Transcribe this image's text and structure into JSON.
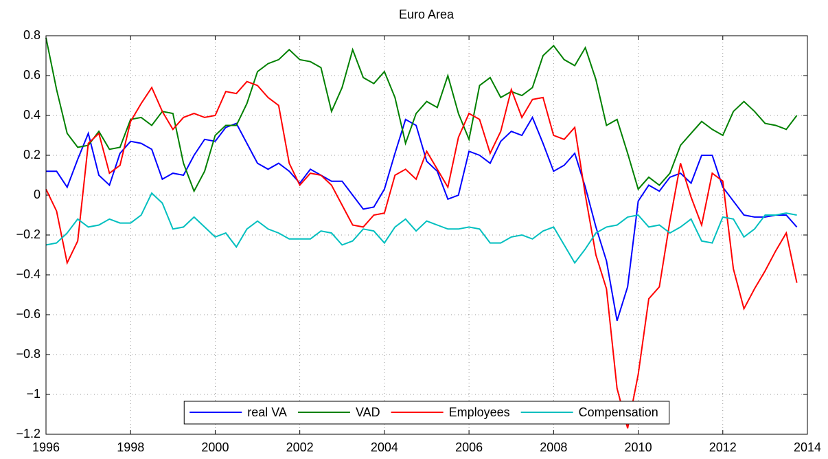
{
  "chart_data": {
    "type": "line",
    "title": "Euro Area",
    "x": [
      1996,
      1996.25,
      1996.5,
      1996.75,
      1997,
      1997.25,
      1997.5,
      1997.75,
      1998,
      1998.25,
      1998.5,
      1998.75,
      1999,
      1999.25,
      1999.5,
      1999.75,
      2000,
      2000.25,
      2000.5,
      2000.75,
      2001,
      2001.25,
      2001.5,
      2001.75,
      2002,
      2002.25,
      2002.5,
      2002.75,
      2003,
      2003.25,
      2003.5,
      2003.75,
      2004,
      2004.25,
      2004.5,
      2004.75,
      2005,
      2005.25,
      2005.5,
      2005.75,
      2006,
      2006.25,
      2006.5,
      2006.75,
      2007,
      2007.25,
      2007.5,
      2007.75,
      2008,
      2008.25,
      2008.5,
      2008.75,
      2009,
      2009.25,
      2009.5,
      2009.75,
      2010,
      2010.25,
      2010.5,
      2010.75,
      2011,
      2011.25,
      2011.5,
      2011.75,
      2012,
      2012.25,
      2012.5,
      2012.75,
      2013,
      2013.25,
      2013.5,
      2013.75
    ],
    "series": [
      {
        "name": "real VA",
        "color": "#0000ff",
        "values": [
          0.12,
          0.12,
          0.04,
          0.18,
          0.31,
          0.1,
          0.05,
          0.21,
          0.27,
          0.26,
          0.23,
          0.08,
          0.11,
          0.1,
          0.2,
          0.28,
          0.27,
          0.34,
          0.36,
          0.26,
          0.16,
          0.13,
          0.16,
          0.12,
          0.06,
          0.13,
          0.1,
          0.07,
          0.07,
          0.0,
          -0.07,
          -0.06,
          0.03,
          0.21,
          0.38,
          0.35,
          0.17,
          0.12,
          -0.02,
          0.0,
          0.22,
          0.2,
          0.16,
          0.27,
          0.32,
          0.3,
          0.39,
          0.26,
          0.12,
          0.15,
          0.21,
          0.04,
          -0.16,
          -0.33,
          -0.63,
          -0.46,
          -0.03,
          0.05,
          0.02,
          0.09,
          0.11,
          0.06,
          0.2,
          0.2,
          0.04,
          -0.03,
          -0.1,
          -0.11,
          -0.11,
          -0.1,
          -0.1,
          -0.16
        ]
      },
      {
        "name": "VAD",
        "color": "#008000",
        "values": [
          0.79,
          0.53,
          0.31,
          0.24,
          0.25,
          0.32,
          0.23,
          0.24,
          0.38,
          0.39,
          0.35,
          0.42,
          0.41,
          0.16,
          0.02,
          0.12,
          0.3,
          0.35,
          0.35,
          0.46,
          0.62,
          0.66,
          0.68,
          0.73,
          0.68,
          0.67,
          0.64,
          0.42,
          0.54,
          0.73,
          0.59,
          0.56,
          0.62,
          0.49,
          0.26,
          0.41,
          0.47,
          0.44,
          0.6,
          0.41,
          0.28,
          0.55,
          0.59,
          0.49,
          0.52,
          0.5,
          0.54,
          0.7,
          0.75,
          0.68,
          0.65,
          0.74,
          0.58,
          0.35,
          0.38,
          0.21,
          0.03,
          0.09,
          0.05,
          0.11,
          0.25,
          0.31,
          0.37,
          0.33,
          0.3,
          0.42,
          0.47,
          0.42,
          0.36,
          0.35,
          0.33,
          0.4
        ]
      },
      {
        "name": "Employees",
        "color": "#ff0000",
        "values": [
          0.03,
          -0.08,
          -0.34,
          -0.23,
          0.26,
          0.31,
          0.11,
          0.15,
          0.37,
          0.46,
          0.54,
          0.42,
          0.33,
          0.39,
          0.41,
          0.39,
          0.4,
          0.52,
          0.51,
          0.57,
          0.55,
          0.49,
          0.45,
          0.16,
          0.05,
          0.11,
          0.1,
          0.05,
          -0.05,
          -0.15,
          -0.16,
          -0.1,
          -0.09,
          0.1,
          0.13,
          0.08,
          0.22,
          0.13,
          0.04,
          0.29,
          0.41,
          0.38,
          0.21,
          0.32,
          0.53,
          0.39,
          0.48,
          0.49,
          0.3,
          0.28,
          0.34,
          0.0,
          -0.3,
          -0.47,
          -0.97,
          -1.17,
          -0.9,
          -0.52,
          -0.46,
          -0.13,
          0.16,
          -0.01,
          -0.15,
          0.11,
          0.07,
          -0.37,
          -0.57,
          -0.47,
          -0.38,
          -0.28,
          -0.19,
          -0.44
        ]
      },
      {
        "name": "Compensation",
        "color": "#00bfbf",
        "values": [
          -0.25,
          -0.24,
          -0.19,
          -0.12,
          -0.16,
          -0.15,
          -0.12,
          -0.14,
          -0.14,
          -0.1,
          0.01,
          -0.04,
          -0.17,
          -0.16,
          -0.11,
          -0.16,
          -0.21,
          -0.19,
          -0.26,
          -0.17,
          -0.13,
          -0.17,
          -0.19,
          -0.22,
          -0.22,
          -0.22,
          -0.18,
          -0.19,
          -0.25,
          -0.23,
          -0.17,
          -0.18,
          -0.24,
          -0.16,
          -0.12,
          -0.18,
          -0.13,
          -0.15,
          -0.17,
          -0.17,
          -0.16,
          -0.17,
          -0.24,
          -0.24,
          -0.21,
          -0.2,
          -0.22,
          -0.18,
          -0.16,
          -0.25,
          -0.34,
          -0.27,
          -0.19,
          -0.16,
          -0.15,
          -0.11,
          -0.1,
          -0.16,
          -0.15,
          -0.19,
          -0.16,
          -0.12,
          -0.23,
          -0.24,
          -0.11,
          -0.12,
          -0.21,
          -0.17,
          -0.1,
          -0.1,
          -0.09,
          -0.1
        ]
      }
    ],
    "xlim": [
      1996,
      2014
    ],
    "xticks": [
      1996,
      1998,
      2000,
      2002,
      2004,
      2006,
      2008,
      2010,
      2012,
      2014
    ],
    "ylim": [
      -1.2,
      0.8
    ],
    "yticks": [
      {
        "value": -1.2,
        "label": "−1.2"
      },
      {
        "value": -1,
        "label": "−1"
      },
      {
        "value": -0.8,
        "label": "−0.8"
      },
      {
        "value": -0.6,
        "label": "−0.6"
      },
      {
        "value": -0.4,
        "label": "−0.4"
      },
      {
        "value": -0.2,
        "label": "−0.2"
      },
      0,
      0.2,
      0.4,
      0.6,
      0.8
    ],
    "grid": true,
    "legend": "lower center"
  }
}
